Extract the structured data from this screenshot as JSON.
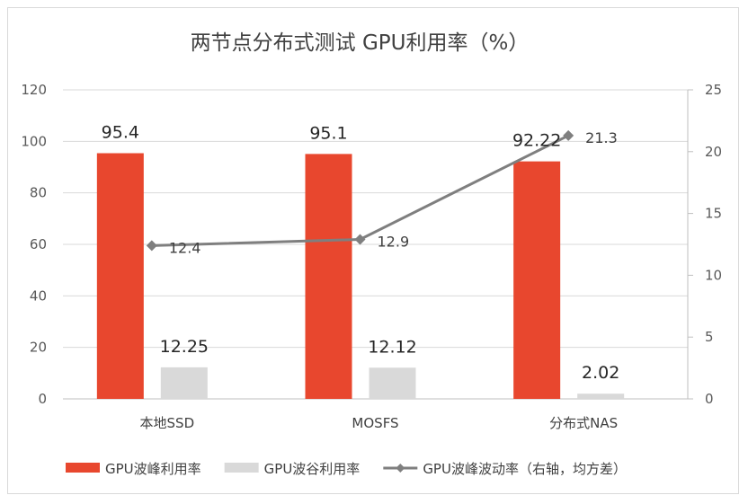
{
  "chart_data": {
    "type": "bar",
    "title": "两节点分布式测试 GPU利用率（%）",
    "categories": [
      "本地SSD",
      "MOSFS",
      "分布式NAS"
    ],
    "series": [
      {
        "name": "GPU波峰利用率",
        "kind": "bar",
        "axis": "left",
        "color": "#e8472e",
        "values": [
          95.4,
          95.1,
          92.22
        ],
        "labels": [
          "95.4",
          "95.1",
          "92.22"
        ]
      },
      {
        "name": "GPU波谷利用率",
        "kind": "bar",
        "axis": "left",
        "color": "#d9d9d9",
        "values": [
          12.25,
          12.12,
          2.02
        ],
        "labels": [
          "12.25",
          "12.12",
          "2.02"
        ]
      },
      {
        "name": "GPU波峰波动率（右轴，均方差）",
        "kind": "line",
        "axis": "right",
        "color": "#7f7f7f",
        "values": [
          12.4,
          12.9,
          21.3
        ],
        "labels": [
          "12.4",
          "12.9",
          "21.3"
        ]
      }
    ],
    "y_left": {
      "ylim": [
        0,
        120
      ],
      "ticks": [
        "0",
        "20",
        "40",
        "60",
        "80",
        "100",
        "120"
      ]
    },
    "y_right": {
      "ylim": [
        0,
        25
      ],
      "ticks": [
        "0",
        "5",
        "10",
        "15",
        "20",
        "25"
      ]
    },
    "grid": true,
    "legend_position": "bottom"
  }
}
